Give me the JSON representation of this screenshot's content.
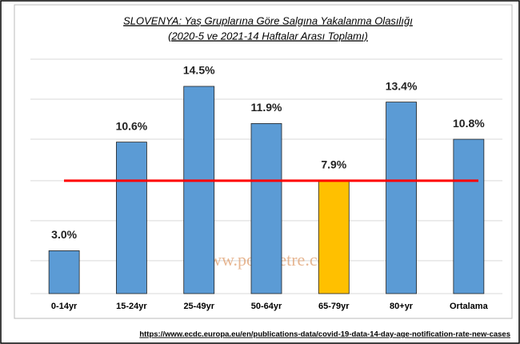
{
  "chart_data": {
    "type": "bar",
    "title": "SLOVENYA: Yaş Gruplarına Göre Salgına Yakalanma Olasılığı",
    "subtitle": "(2020-5 ve 2021-14 Haftalar Arası Toplamı)",
    "categories": [
      "0-14yr",
      "15-24yr",
      "25-49yr",
      "50-64yr",
      "65-79yr",
      "80+yr",
      "Ortalama"
    ],
    "values": [
      3.0,
      10.6,
      14.5,
      11.9,
      7.9,
      13.4,
      10.8
    ],
    "value_labels": [
      "3.0%",
      "10.6%",
      "14.5%",
      "11.9%",
      "7.9%",
      "13.4%",
      "10.8%"
    ],
    "colors": [
      "#5b9bd5",
      "#5b9bd5",
      "#5b9bd5",
      "#5b9bd5",
      "#ffc000",
      "#5b9bd5",
      "#5b9bd5"
    ],
    "ylim": [
      0,
      16.4
    ],
    "yticks": [
      2.3,
      5.1,
      7.9,
      10.8,
      13.6,
      16.4
    ],
    "grid": true,
    "reference_line": {
      "value": 7.9,
      "color": "#ff0000"
    },
    "watermark": "www.polimetre.com",
    "source": "https://www.ecdc.europa.eu/en/publications-data/covid-19-data-14-day-age-notification-rate-new-cases"
  }
}
